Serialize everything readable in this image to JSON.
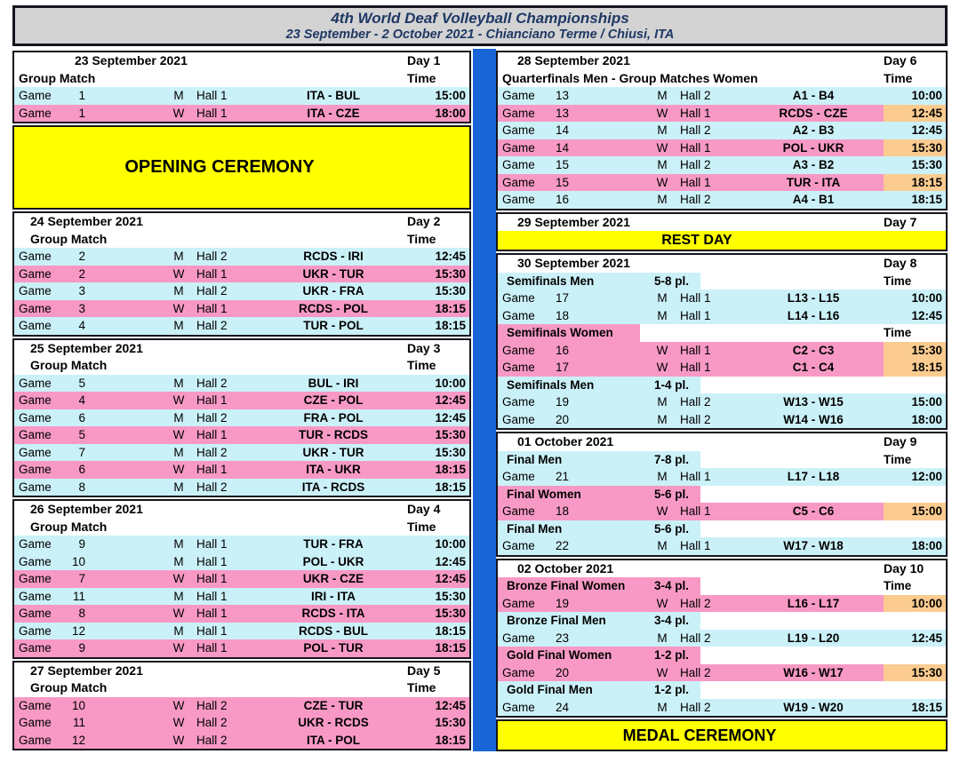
{
  "header": {
    "title": "4th World Deaf Volleyball Championships",
    "subtitle": "23 September - 2 October 2021 - Chianciano Terme / Chiusi, ITA"
  },
  "colors": {
    "men": "#CBF1F8",
    "women": "#F899C5",
    "hl": "#FBCB90",
    "banner": "#FFFF00",
    "divider": "#1765D6",
    "header_bg": "#D3D3D3",
    "header_text": "#1F3864"
  },
  "columns": {
    "left": {
      "sections": [
        {
          "kind": "day",
          "date": "23 September 2021",
          "day": "Day 1",
          "date_indent": "wide",
          "label": "Group Match",
          "label_indent": "edge",
          "time_label": "Time",
          "rows": [
            {
              "kind": "game",
              "label": "Game",
              "num": "1",
              "gender": "M",
              "hall": "Hall 1",
              "match": "ITA - BUL",
              "time": "15:00",
              "color": "men",
              "hl": false
            },
            {
              "kind": "game",
              "label": "Game",
              "num": "1",
              "gender": "W",
              "hall": "Hall 1",
              "match": "ITA - CZE",
              "time": "18:00",
              "color": "women",
              "hl": false
            }
          ]
        },
        {
          "kind": "banner",
          "text": "OPENING CEREMONY",
          "height": 95
        },
        {
          "kind": "day",
          "date": "24 September 2021",
          "day": "Day 2",
          "date_indent": "narrow",
          "label": "Group Match",
          "label_indent": "narrow",
          "time_label": "Time",
          "rows": [
            {
              "kind": "game",
              "label": "Game",
              "num": "2",
              "gender": "M",
              "hall": "Hall 2",
              "match": "RCDS - IRI",
              "time": "12:45",
              "color": "men",
              "hl": false
            },
            {
              "kind": "game",
              "label": "Game",
              "num": "2",
              "gender": "W",
              "hall": "Hall 1",
              "match": "UKR - TUR",
              "time": "15:30",
              "color": "women",
              "hl": false
            },
            {
              "kind": "game",
              "label": "Game",
              "num": "3",
              "gender": "M",
              "hall": "Hall 2",
              "match": "UKR - FRA",
              "time": "15:30",
              "color": "men",
              "hl": false
            },
            {
              "kind": "game",
              "label": "Game",
              "num": "3",
              "gender": "W",
              "hall": "Hall 1",
              "match": "RCDS - POL",
              "time": "18:15",
              "color": "women",
              "hl": false
            },
            {
              "kind": "game",
              "label": "Game",
              "num": "4",
              "gender": "M",
              "hall": "Hall 2",
              "match": "TUR - POL",
              "time": "18:15",
              "color": "men",
              "hl": false
            }
          ]
        },
        {
          "kind": "day",
          "date": "25 September 2021",
          "day": "Day 3",
          "date_indent": "narrow",
          "label": "Group Match",
          "label_indent": "narrow",
          "time_label": "Time",
          "rows": [
            {
              "kind": "game",
              "label": "Game",
              "num": "5",
              "gender": "M",
              "hall": "Hall 2",
              "match": "BUL - IRI",
              "time": "10:00",
              "color": "men",
              "hl": false
            },
            {
              "kind": "game",
              "label": "Game",
              "num": "4",
              "gender": "W",
              "hall": "Hall 1",
              "match": "CZE - POL",
              "time": "12:45",
              "color": "women",
              "hl": false
            },
            {
              "kind": "game",
              "label": "Game",
              "num": "6",
              "gender": "M",
              "hall": "Hall 2",
              "match": "FRA - POL",
              "time": "12:45",
              "color": "men",
              "hl": false
            },
            {
              "kind": "game",
              "label": "Game",
              "num": "5",
              "gender": "W",
              "hall": "Hall 1",
              "match": "TUR - RCDS",
              "time": "15:30",
              "color": "women",
              "hl": false
            },
            {
              "kind": "game",
              "label": "Game",
              "num": "7",
              "gender": "M",
              "hall": "Hall 2",
              "match": "UKR - TUR",
              "time": "15:30",
              "color": "men",
              "hl": false
            },
            {
              "kind": "game",
              "label": "Game",
              "num": "6",
              "gender": "W",
              "hall": "Hall 1",
              "match": "ITA - UKR",
              "time": "18:15",
              "color": "women",
              "hl": false
            },
            {
              "kind": "game",
              "label": "Game",
              "num": "8",
              "gender": "M",
              "hall": "Hall 2",
              "match": "ITA - RCDS",
              "time": "18:15",
              "color": "men",
              "hl": false
            }
          ]
        },
        {
          "kind": "day",
          "date": "26 September 2021",
          "day": "Day 4",
          "date_indent": "narrow",
          "label": "Group Match",
          "label_indent": "narrow",
          "time_label": "Time",
          "rows": [
            {
              "kind": "game",
              "label": "Game",
              "num": "9",
              "gender": "M",
              "hall": "Hall 1",
              "match": "TUR - FRA",
              "time": "10:00",
              "color": "men",
              "hl": false
            },
            {
              "kind": "game",
              "label": "Game",
              "num": "10",
              "gender": "M",
              "hall": "Hall 1",
              "match": "POL - UKR",
              "time": "12:45",
              "color": "men",
              "hl": false
            },
            {
              "kind": "game",
              "label": "Game",
              "num": "7",
              "gender": "W",
              "hall": "Hall 1",
              "match": "UKR - CZE",
              "time": "12:45",
              "color": "women",
              "hl": false
            },
            {
              "kind": "game",
              "label": "Game",
              "num": "11",
              "gender": "M",
              "hall": "Hall 1",
              "match": "IRI - ITA",
              "time": "15:30",
              "color": "men",
              "hl": false
            },
            {
              "kind": "game",
              "label": "Game",
              "num": "8",
              "gender": "W",
              "hall": "Hall 1",
              "match": "RCDS - ITA",
              "time": "15:30",
              "color": "women",
              "hl": false
            },
            {
              "kind": "game",
              "label": "Game",
              "num": "12",
              "gender": "M",
              "hall": "Hall 1",
              "match": "RCDS - BUL",
              "time": "18:15",
              "color": "men",
              "hl": false
            },
            {
              "kind": "game",
              "label": "Game",
              "num": "9",
              "gender": "W",
              "hall": "Hall 1",
              "match": "POL - TUR",
              "time": "18:15",
              "color": "women",
              "hl": false
            }
          ]
        },
        {
          "kind": "day",
          "date": "27 September 2021",
          "day": "Day 5",
          "date_indent": "narrow",
          "label": "Group Match",
          "label_indent": "narrow",
          "time_label": "Time",
          "rows": [
            {
              "kind": "game",
              "label": "Game",
              "num": "10",
              "gender": "W",
              "hall": "Hall 2",
              "match": "CZE - TUR",
              "time": "12:45",
              "color": "women",
              "hl": false
            },
            {
              "kind": "game",
              "label": "Game",
              "num": "11",
              "gender": "W",
              "hall": "Hall 2",
              "match": "UKR - RCDS",
              "time": "15:30",
              "color": "women",
              "hl": false
            },
            {
              "kind": "game",
              "label": "Game",
              "num": "12",
              "gender": "W",
              "hall": "Hall 2",
              "match": "ITA - POL",
              "time": "18:15",
              "color": "women",
              "hl": false
            }
          ]
        }
      ]
    },
    "right": {
      "sections": [
        {
          "kind": "day",
          "date": "28 September 2021",
          "day": "Day 6",
          "date_indent": "mid",
          "label": "Quarterfinals Men - Group Matches Women",
          "label_indent": "edge",
          "time_label": "Time",
          "rows": [
            {
              "kind": "game",
              "label": "Game",
              "num": "13",
              "gender": "M",
              "hall": "Hall 2",
              "match": "A1 - B4",
              "time": "10:00",
              "color": "men",
              "hl": false
            },
            {
              "kind": "game",
              "label": "Game",
              "num": "13",
              "gender": "W",
              "hall": "Hall 1",
              "match": "RCDS - CZE",
              "time": "12:45",
              "color": "women",
              "hl": true
            },
            {
              "kind": "game",
              "label": "Game",
              "num": "14",
              "gender": "M",
              "hall": "Hall 2",
              "match": "A2 - B3",
              "time": "12:45",
              "color": "men",
              "hl": false
            },
            {
              "kind": "game",
              "label": "Game",
              "num": "14",
              "gender": "W",
              "hall": "Hall 1",
              "match": "POL - UKR",
              "time": "15:30",
              "color": "women",
              "hl": true
            },
            {
              "kind": "game",
              "label": "Game",
              "num": "15",
              "gender": "M",
              "hall": "Hall 2",
              "match": "A3 - B2",
              "time": "15:30",
              "color": "men",
              "hl": false
            },
            {
              "kind": "game",
              "label": "Game",
              "num": "15",
              "gender": "W",
              "hall": "Hall 1",
              "match": "TUR - ITA",
              "time": "18:15",
              "color": "women",
              "hl": true
            },
            {
              "kind": "game",
              "label": "Game",
              "num": "16",
              "gender": "M",
              "hall": "Hall 2",
              "match": "A4 - B1",
              "time": "18:15",
              "color": "men",
              "hl": false
            }
          ]
        },
        {
          "kind": "day",
          "date": "29 September 2021",
          "day": "Day 7",
          "date_indent": "mid",
          "rows": [
            {
              "kind": "rest",
              "text": "REST DAY"
            }
          ]
        },
        {
          "kind": "day",
          "date": "30 September 2021",
          "day": "Day 8",
          "date_indent": "mid",
          "rows": [
            {
              "kind": "sub",
              "title": "Semifinals Men",
              "pl": "5-8 pl.",
              "color": "men",
              "time_label": "Time"
            },
            {
              "kind": "game",
              "label": "Game",
              "num": "17",
              "gender": "M",
              "hall": "Hall 1",
              "match": "L13 - L15",
              "time": "10:00",
              "color": "men",
              "hl": false
            },
            {
              "kind": "game",
              "label": "Game",
              "num": "18",
              "gender": "M",
              "hall": "Hall 1",
              "match": "L14 - L16",
              "time": "12:45",
              "color": "men",
              "hl": false
            },
            {
              "kind": "sub",
              "title": "Semifinals Women",
              "pl": "",
              "color": "women",
              "time_label": "Time"
            },
            {
              "kind": "game",
              "label": "Game",
              "num": "16",
              "gender": "W",
              "hall": "Hall 1",
              "match": "C2 - C3",
              "time": "15:30",
              "color": "women",
              "hl": true
            },
            {
              "kind": "game",
              "label": "Game",
              "num": "17",
              "gender": "W",
              "hall": "Hall 1",
              "match": "C1 - C4",
              "time": "18:15",
              "color": "women",
              "hl": true
            },
            {
              "kind": "sub",
              "title": "Semifinals Men",
              "pl": "1-4 pl.",
              "color": "men"
            },
            {
              "kind": "game",
              "label": "Game",
              "num": "19",
              "gender": "M",
              "hall": "Hall 2",
              "match": "W13 - W15",
              "time": "15:00",
              "color": "men",
              "hl": false
            },
            {
              "kind": "game",
              "label": "Game",
              "num": "20",
              "gender": "M",
              "hall": "Hall 2",
              "match": "W14 - W16",
              "time": "18:00",
              "color": "men",
              "hl": false
            }
          ]
        },
        {
          "kind": "day",
          "date": "01 October 2021",
          "day": "Day 9",
          "date_indent": "mid",
          "rows": [
            {
              "kind": "sub",
              "title": "Final Men",
              "pl": "7-8 pl.",
              "color": "men",
              "time_label": "Time"
            },
            {
              "kind": "game",
              "label": "Game",
              "num": "21",
              "gender": "M",
              "hall": "Hall 1",
              "match": "L17 - L18",
              "time": "12:00",
              "color": "men",
              "hl": false
            },
            {
              "kind": "sub",
              "title": "Final Women",
              "pl": "5-6 pl.",
              "color": "women"
            },
            {
              "kind": "game",
              "label": "Game",
              "num": "18",
              "gender": "W",
              "hall": "Hall 1",
              "match": "C5 - C6",
              "time": "15:00",
              "color": "women",
              "hl": true
            },
            {
              "kind": "sub",
              "title": "Final Men",
              "pl": "5-6 pl.",
              "color": "men"
            },
            {
              "kind": "game",
              "label": "Game",
              "num": "22",
              "gender": "M",
              "hall": "Hall 1",
              "match": "W17 - W18",
              "time": "18:00",
              "color": "men",
              "hl": false
            }
          ]
        },
        {
          "kind": "day",
          "date": "02 October 2021",
          "day": "Day 10",
          "date_indent": "mid",
          "rows": [
            {
              "kind": "sub",
              "title": "Bronze Final Women",
              "pl": "3-4 pl.",
              "color": "women",
              "time_label": "Time"
            },
            {
              "kind": "game",
              "label": "Game",
              "num": "19",
              "gender": "W",
              "hall": "Hall 2",
              "match": "L16 - L17",
              "time": "10:00",
              "color": "women",
              "hl": true
            },
            {
              "kind": "sub",
              "title": "Bronze Final Men",
              "pl": "3-4 pl.",
              "color": "men"
            },
            {
              "kind": "game",
              "label": "Game",
              "num": "23",
              "gender": "M",
              "hall": "Hall 2",
              "match": "L19 - L20",
              "time": "12:45",
              "color": "men",
              "hl": false
            },
            {
              "kind": "sub",
              "title": "Gold Final Women",
              "pl": "1-2 pl.",
              "color": "women"
            },
            {
              "kind": "game",
              "label": "Game",
              "num": "20",
              "gender": "W",
              "hall": "Hall 2",
              "match": "W16 - W17",
              "time": "15:30",
              "color": "women",
              "hl": true
            },
            {
              "kind": "sub",
              "title": "Gold Final Men",
              "pl": "1-2 pl.",
              "color": "men"
            },
            {
              "kind": "game",
              "label": "Game",
              "num": "24",
              "gender": "M",
              "hall": "Hall 2",
              "match": "W19 - W20",
              "time": "18:15",
              "color": "men",
              "hl": false
            }
          ]
        },
        {
          "kind": "banner",
          "text": "MEDAL CEREMONY",
          "height": 36
        }
      ]
    }
  }
}
